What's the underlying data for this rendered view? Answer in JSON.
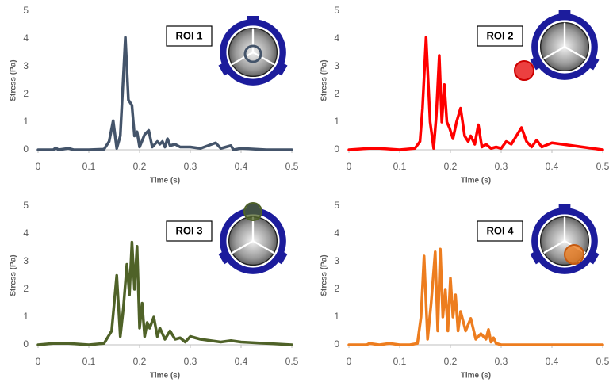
{
  "chart_data": [
    {
      "type": "line",
      "title": "ROI 1",
      "xlabel": "Time (s)",
      "ylabel": "Stress (Pa)",
      "color": "#44546a",
      "x": [
        0,
        0.03,
        0.035,
        0.04,
        0.06,
        0.07,
        0.1,
        0.13,
        0.14,
        0.148,
        0.155,
        0.162,
        0.172,
        0.178,
        0.185,
        0.19,
        0.195,
        0.2,
        0.21,
        0.218,
        0.225,
        0.235,
        0.24,
        0.245,
        0.25,
        0.255,
        0.26,
        0.27,
        0.28,
        0.3,
        0.32,
        0.35,
        0.36,
        0.38,
        0.385,
        0.4,
        0.45,
        0.5
      ],
      "values": [
        0,
        0,
        0.07,
        0,
        0.05,
        0,
        0,
        0.02,
        0.3,
        1.05,
        0.05,
        0.5,
        4.05,
        1.8,
        1.6,
        0.5,
        0.65,
        0.1,
        0.55,
        0.7,
        0.1,
        0.3,
        0.2,
        0.3,
        0.1,
        0.4,
        0.15,
        0.2,
        0.1,
        0.1,
        0.05,
        0.25,
        0.05,
        0.15,
        0,
        0.05,
        0,
        0
      ],
      "xlim": [
        0,
        0.5
      ],
      "xticks": [
        0,
        0.1,
        0.2,
        0.3,
        0.4,
        0.5
      ],
      "ylim": [
        0,
        5
      ],
      "yticks": [
        0,
        1,
        2,
        3,
        4,
        5
      ],
      "grid": false
    },
    {
      "type": "line",
      "title": "ROI 2",
      "xlabel": "Time (s)",
      "ylabel": "Stress (Pa)",
      "color": "#ff0000",
      "x": [
        0,
        0.04,
        0.06,
        0.1,
        0.13,
        0.14,
        0.145,
        0.152,
        0.16,
        0.167,
        0.172,
        0.178,
        0.183,
        0.188,
        0.193,
        0.198,
        0.205,
        0.212,
        0.22,
        0.228,
        0.235,
        0.24,
        0.248,
        0.255,
        0.262,
        0.27,
        0.28,
        0.29,
        0.3,
        0.31,
        0.32,
        0.33,
        0.34,
        0.35,
        0.36,
        0.37,
        0.38,
        0.4,
        0.42,
        0.44,
        0.46,
        0.48,
        0.5
      ],
      "values": [
        0,
        0.05,
        0.05,
        0,
        0.05,
        0.3,
        1.5,
        4.05,
        1.0,
        0.05,
        1.2,
        3.4,
        1.0,
        2.35,
        1.0,
        0.8,
        0.4,
        1.0,
        1.5,
        0.5,
        0.3,
        0.5,
        0.2,
        0.9,
        0.1,
        0.2,
        0.05,
        0.1,
        0.05,
        0.3,
        0.2,
        0.5,
        0.8,
        0.3,
        0.1,
        0.35,
        0.1,
        0.25,
        0.2,
        0.15,
        0.1,
        0.05,
        0
      ],
      "xlim": [
        0,
        0.5
      ],
      "xticks": [
        0,
        0.1,
        0.2,
        0.3,
        0.4,
        0.5
      ],
      "ylim": [
        0,
        5
      ],
      "yticks": [
        0,
        1,
        2,
        3,
        4,
        5
      ],
      "grid": false
    },
    {
      "type": "line",
      "title": "ROI 3",
      "xlabel": "Time (s)",
      "ylabel": "Stress (Pa)",
      "color": "#4f6228",
      "x": [
        0,
        0.03,
        0.06,
        0.1,
        0.13,
        0.145,
        0.155,
        0.162,
        0.168,
        0.175,
        0.18,
        0.185,
        0.19,
        0.195,
        0.2,
        0.205,
        0.21,
        0.215,
        0.22,
        0.228,
        0.235,
        0.24,
        0.25,
        0.26,
        0.27,
        0.28,
        0.29,
        0.3,
        0.32,
        0.34,
        0.36,
        0.38,
        0.4,
        0.45,
        0.5
      ],
      "values": [
        0,
        0.05,
        0.05,
        0,
        0.05,
        0.5,
        2.5,
        0.3,
        1.3,
        2.9,
        1.8,
        3.7,
        2.0,
        3.55,
        0.6,
        1.5,
        0.3,
        0.8,
        0.6,
        1.0,
        0.3,
        0.6,
        0.2,
        0.5,
        0.2,
        0.25,
        0.1,
        0.3,
        0.2,
        0.15,
        0.1,
        0.15,
        0.1,
        0.05,
        0
      ],
      "xlim": [
        0,
        0.5
      ],
      "xticks": [
        0,
        0.1,
        0.2,
        0.3,
        0.4,
        0.5
      ],
      "ylim": [
        0,
        5
      ],
      "yticks": [
        0,
        1,
        2,
        3,
        4,
        5
      ],
      "grid": false
    },
    {
      "type": "line",
      "title": "ROI 4",
      "xlabel": "Time (s)",
      "ylabel": "Stress (Pa)",
      "color": "#ed7d1f",
      "x": [
        0,
        0.035,
        0.04,
        0.06,
        0.08,
        0.1,
        0.12,
        0.135,
        0.142,
        0.148,
        0.155,
        0.162,
        0.17,
        0.175,
        0.18,
        0.185,
        0.19,
        0.195,
        0.2,
        0.205,
        0.21,
        0.215,
        0.22,
        0.23,
        0.24,
        0.25,
        0.26,
        0.27,
        0.275,
        0.28,
        0.285,
        0.29,
        0.3,
        0.35,
        0.4,
        0.45,
        0.5
      ],
      "values": [
        0,
        0,
        0.05,
        0,
        0.05,
        0,
        0,
        0.05,
        1.0,
        3.2,
        0.2,
        1.5,
        3.35,
        0.5,
        3.45,
        1.0,
        2.0,
        0.5,
        2.4,
        1.0,
        1.8,
        0.5,
        1.2,
        0.5,
        0.95,
        0.2,
        0.4,
        0.2,
        0.55,
        0.1,
        0.25,
        0.05,
        0,
        0,
        0,
        0,
        0
      ],
      "xlim": [
        0,
        0.5
      ],
      "xticks": [
        0,
        0.1,
        0.2,
        0.3,
        0.4,
        0.5
      ],
      "ylim": [
        0,
        5
      ],
      "yticks": [
        0,
        1,
        2,
        3,
        4,
        5
      ],
      "grid": false
    }
  ]
}
